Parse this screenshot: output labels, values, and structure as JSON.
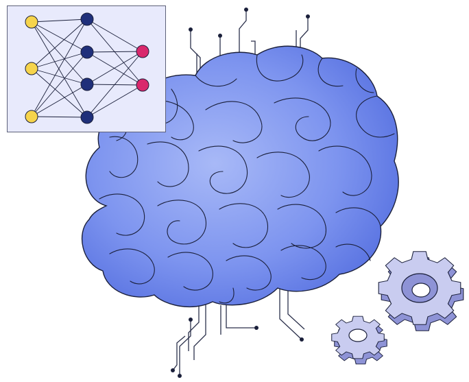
{
  "illustration": {
    "subject": "brain-neural-network",
    "colors": {
      "brain_light": "#9fb2f5",
      "brain_mid": "#7189ee",
      "brain_dark": "#5a73e3",
      "outline": "#1a1f3a",
      "panel_fill": "#e8eafc",
      "panel_border": "#5c6078",
      "node_input": "#f6d44c",
      "node_hidden": "#1f2f7a",
      "node_output": "#d9286c",
      "gear_face": "#c9ccf0",
      "gear_side": "#8e93d6",
      "wire": "#2a2f4a"
    }
  },
  "network": {
    "layers": [
      {
        "role": "input",
        "count": 3
      },
      {
        "role": "hidden",
        "count": 4
      },
      {
        "role": "output",
        "count": 2
      }
    ]
  },
  "icons": [
    "brain-icon",
    "gear-icon",
    "gear-icon"
  ]
}
